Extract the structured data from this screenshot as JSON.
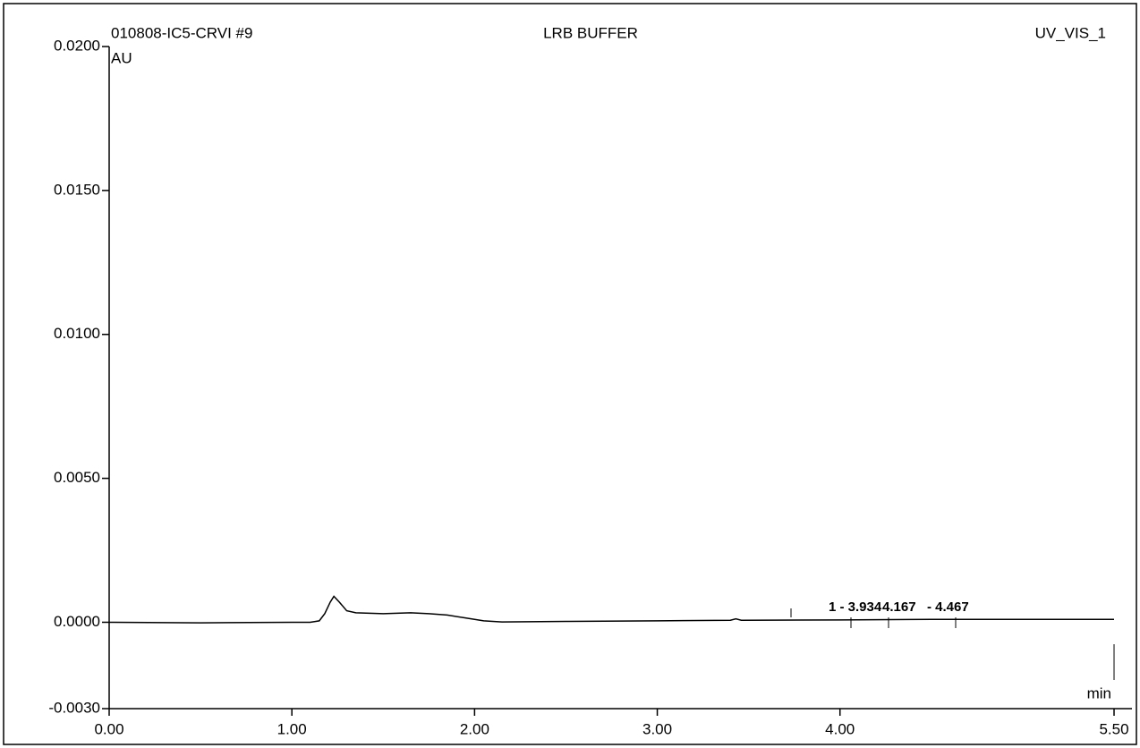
{
  "chart_data": {
    "type": "line",
    "title": "LRB BUFFER",
    "sample": "010808-IC5-CRVI #9",
    "channel": "UV_VIS_1",
    "y_label": "AU",
    "x_label": "min",
    "peak_labels": [
      "1 - 3.934",
      "4.167",
      "- 4.467"
    ],
    "x": [
      0,
      0.5,
      1.0,
      1.1,
      1.15,
      1.18,
      1.21,
      1.23,
      1.26,
      1.3,
      1.35,
      1.5,
      1.65,
      1.75,
      1.85,
      1.95,
      2.05,
      2.15,
      2.5,
      3.0,
      3.4,
      3.43,
      3.46,
      4.0,
      4.5,
      5.0,
      5.5
    ],
    "series": [
      {
        "color": "#000000",
        "values": [
          0,
          -2e-05,
          0,
          0,
          5e-05,
          0.0003,
          0.0007,
          0.0009,
          0.0007,
          0.0004,
          0.00033,
          0.0003,
          0.00033,
          0.0003,
          0.00025,
          0.00015,
          5e-05,
          1e-05,
          3e-05,
          5e-05,
          7e-05,
          0.00012,
          7e-05,
          8e-05,
          0.0001,
          0.0001,
          0.0001
        ]
      }
    ],
    "xlim": [
      0,
      5.5
    ],
    "ylim": [
      -0.003,
      0.02
    ],
    "xticks": [
      {
        "value": 0,
        "label": "0.00"
      },
      {
        "value": 1,
        "label": "1.00"
      },
      {
        "value": 2,
        "label": "2.00"
      },
      {
        "value": 3,
        "label": "3.00"
      },
      {
        "value": 4,
        "label": "4.00"
      },
      {
        "value": 5.5,
        "label": "5.50"
      }
    ],
    "yticks": [
      {
        "value": -0.003,
        "label": "-0.0030"
      },
      {
        "value": 0,
        "label": "0.0000"
      },
      {
        "value": 0.005,
        "label": "0.0050"
      },
      {
        "value": 0.01,
        "label": "0.0100"
      },
      {
        "value": 0.015,
        "label": "0.0150"
      },
      {
        "value": 0.02,
        "label": "0.0200"
      }
    ],
    "grid": false
  }
}
